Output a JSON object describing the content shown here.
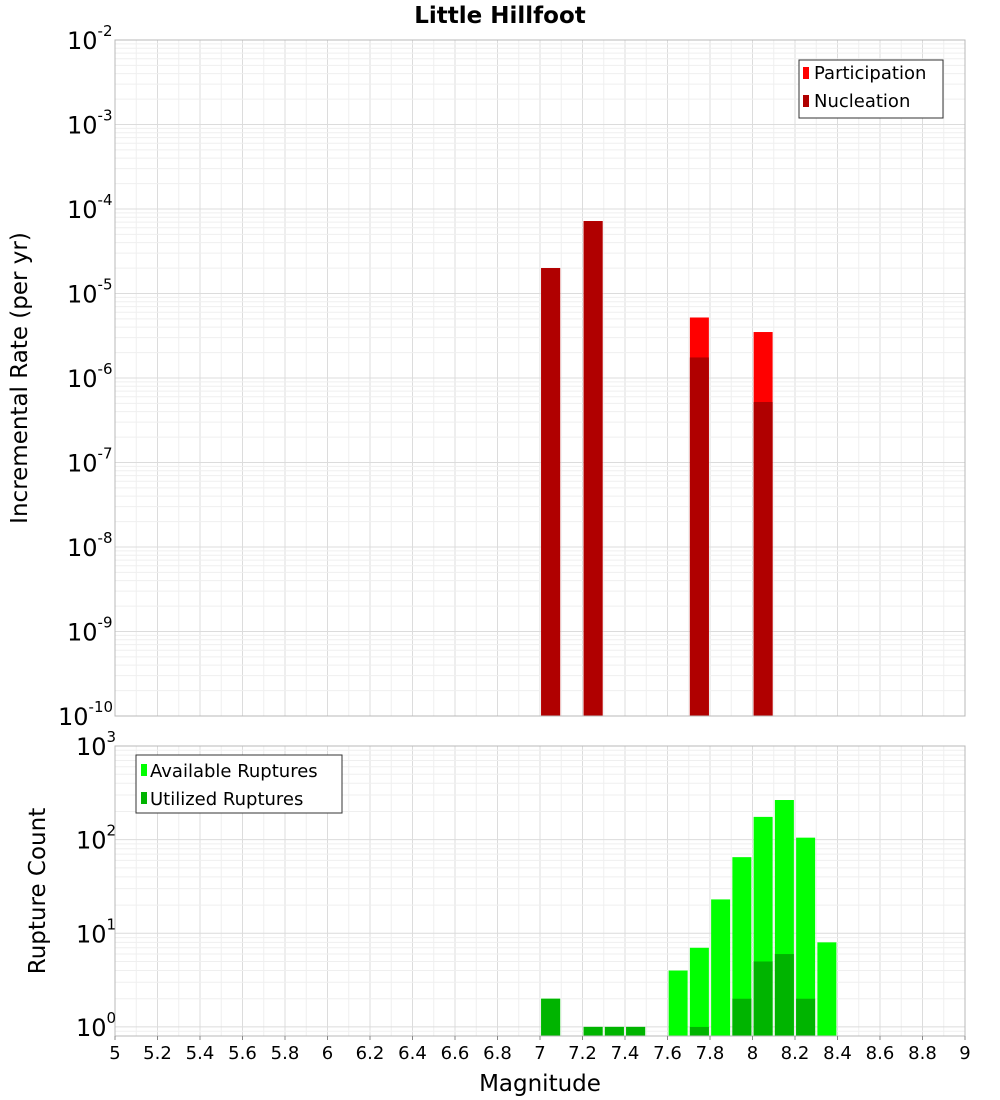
{
  "chart_data": [
    {
      "type": "bar",
      "title": "Little Hillfoot",
      "ylabel": "Incremental Rate (per yr)",
      "xlabel": "",
      "yscale": "log",
      "ylim": [
        1e-10,
        0.01
      ],
      "xlim": [
        5,
        9
      ],
      "grid": true,
      "legend_position": "top-right",
      "colors": {
        "Participation": "#ff0000",
        "Nucleation": "#b00000"
      },
      "series": [
        {
          "name": "Participation",
          "x": [
            7.05,
            7.25,
            7.75,
            8.05
          ],
          "values": [
            2e-05,
            7.2e-05,
            5.2e-06,
            3.5e-06
          ]
        },
        {
          "name": "Nucleation",
          "x": [
            7.05,
            7.25,
            7.75,
            8.05
          ],
          "values": [
            2e-05,
            7.2e-05,
            1.75e-06,
            5.2e-07
          ]
        }
      ],
      "y_ticks": [
        {
          "base": "10",
          "exp": "-10"
        },
        {
          "base": "10",
          "exp": "-9"
        },
        {
          "base": "10",
          "exp": "-8"
        },
        {
          "base": "10",
          "exp": "-7"
        },
        {
          "base": "10",
          "exp": "-6"
        },
        {
          "base": "10",
          "exp": "-5"
        },
        {
          "base": "10",
          "exp": "-4"
        },
        {
          "base": "10",
          "exp": "-3"
        },
        {
          "base": "10",
          "exp": "-2"
        }
      ]
    },
    {
      "type": "bar",
      "title": "",
      "ylabel": "Rupture Count",
      "xlabel": "Magnitude",
      "yscale": "log",
      "ylim": [
        0.8,
        1000
      ],
      "xlim": [
        5,
        9
      ],
      "grid": true,
      "legend_position": "top-left",
      "colors": {
        "Available Ruptures": "#00ff00",
        "Utilized Ruptures": "#00b400"
      },
      "series": [
        {
          "name": "Available Ruptures",
          "x": [
            7.05,
            7.25,
            7.35,
            7.45,
            7.65,
            7.75,
            7.85,
            7.95,
            8.05,
            8.15,
            8.25,
            8.35
          ],
          "values": [
            2,
            1,
            1,
            1,
            4,
            7,
            23,
            65,
            175,
            265,
            105,
            8
          ]
        },
        {
          "name": "Utilized Ruptures",
          "x": [
            7.05,
            7.25,
            7.35,
            7.45,
            7.75,
            7.95,
            8.05,
            8.15,
            8.25
          ],
          "values": [
            2,
            1,
            1,
            1,
            1,
            2,
            5,
            6,
            2
          ]
        }
      ],
      "x_ticks": [
        "5",
        "5.2",
        "5.4",
        "5.6",
        "5.8",
        "6",
        "6.2",
        "6.4",
        "6.6",
        "6.8",
        "7",
        "7.2",
        "7.4",
        "7.6",
        "7.8",
        "8",
        "8.2",
        "8.4",
        "8.6",
        "8.8",
        "9"
      ],
      "y_ticks": [
        {
          "base": "10",
          "exp": "0"
        },
        {
          "base": "10",
          "exp": "1"
        },
        {
          "base": "10",
          "exp": "2"
        },
        {
          "base": "10",
          "exp": "3"
        }
      ]
    }
  ]
}
